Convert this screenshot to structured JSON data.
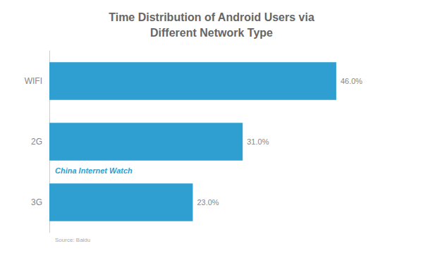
{
  "chart_data": {
    "type": "bar",
    "orientation": "horizontal",
    "title": "Time Distribution of Android Users via\nDifferent Network Type",
    "categories": [
      "WIFI",
      "2G",
      "3G"
    ],
    "values": [
      46.0,
      31.0,
      23.0
    ],
    "value_labels": [
      "46.0%",
      "31.0%",
      "23.0%"
    ],
    "data_labels": true,
    "color": "#2E9FD0",
    "xlim": [
      0,
      52
    ],
    "tick_labels": "y",
    "grid": false,
    "annotations": [
      "China Internet Watch",
      "Source: Baidu"
    ]
  }
}
